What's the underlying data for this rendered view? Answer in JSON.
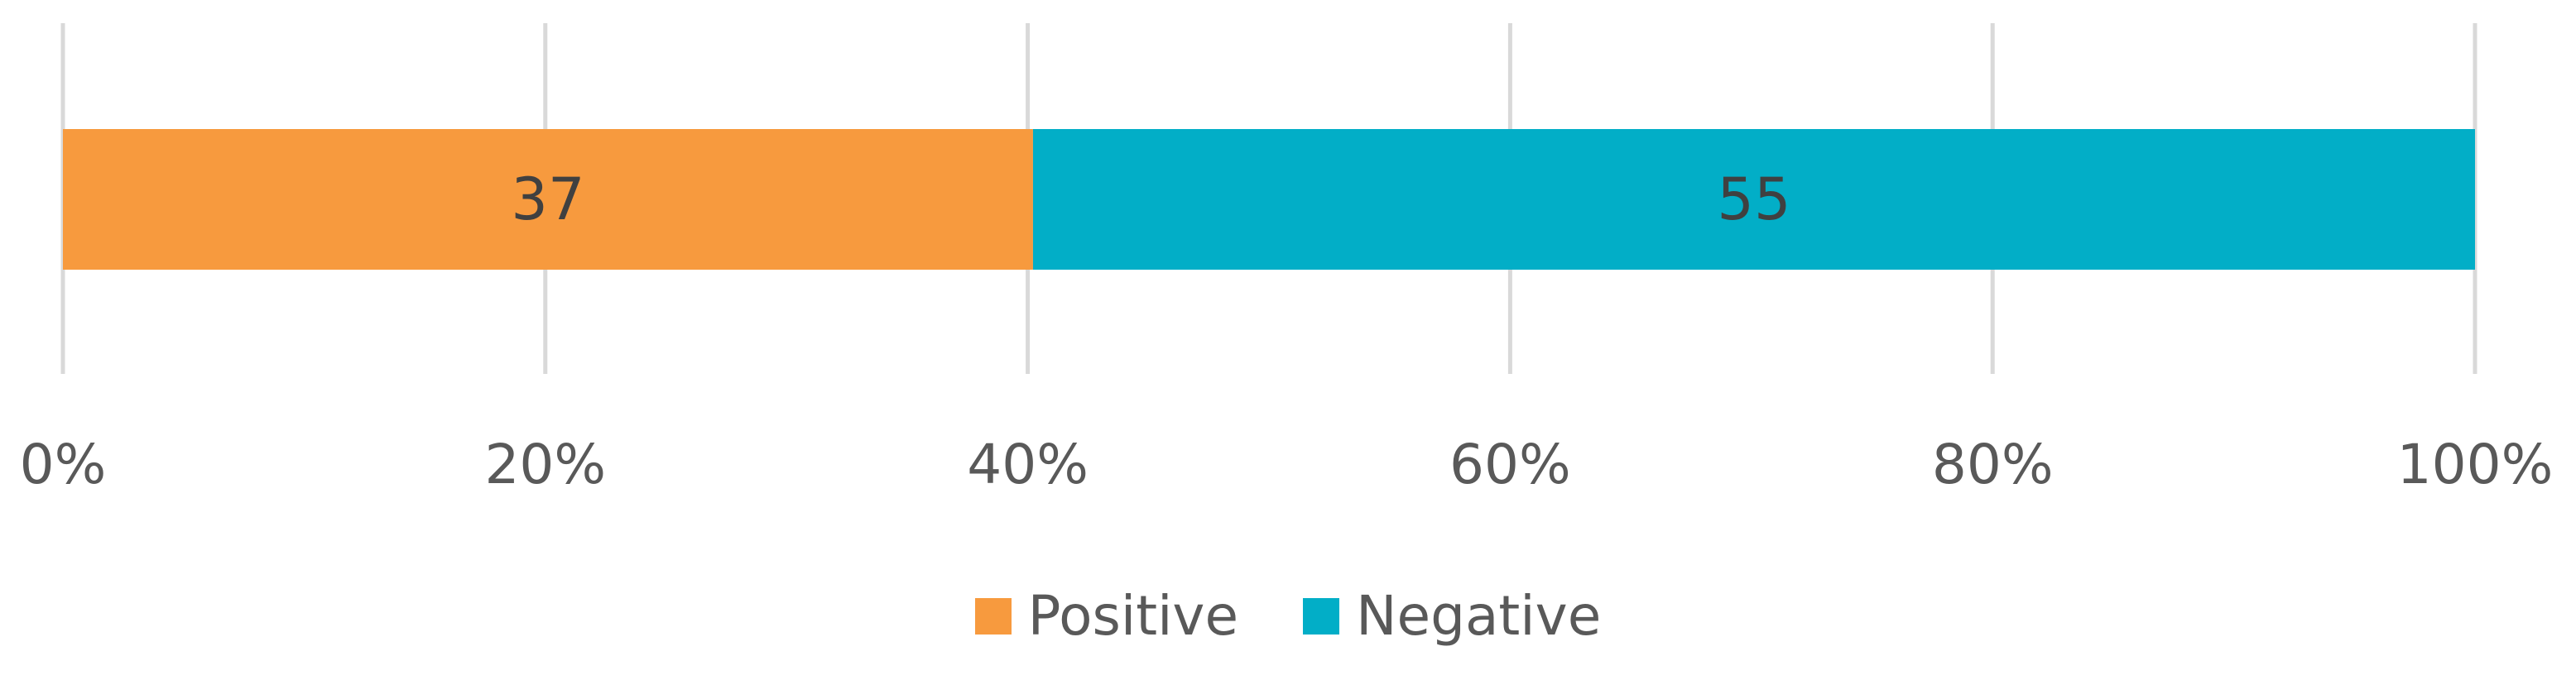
{
  "chart_data": {
    "type": "bar",
    "orientation": "horizontal",
    "stacked": "percent",
    "categories": [
      ""
    ],
    "series": [
      {
        "name": "Positive",
        "values": [
          37
        ],
        "color": "#F79A3E"
      },
      {
        "name": "Negative",
        "values": [
          55
        ],
        "color": "#02AEC7"
      }
    ],
    "x_ticks": [
      "0%",
      "20%",
      "40%",
      "60%",
      "80%",
      "100%"
    ],
    "xlim": [
      0,
      100
    ],
    "grid": "vertical",
    "legend_position": "bottom",
    "data_labels": true,
    "title": "",
    "xlabel": "",
    "ylabel": ""
  },
  "legend": {
    "items": [
      {
        "label": "Positive",
        "color": "#F79A3E"
      },
      {
        "label": "Negative",
        "color": "#02AEC7"
      }
    ]
  }
}
